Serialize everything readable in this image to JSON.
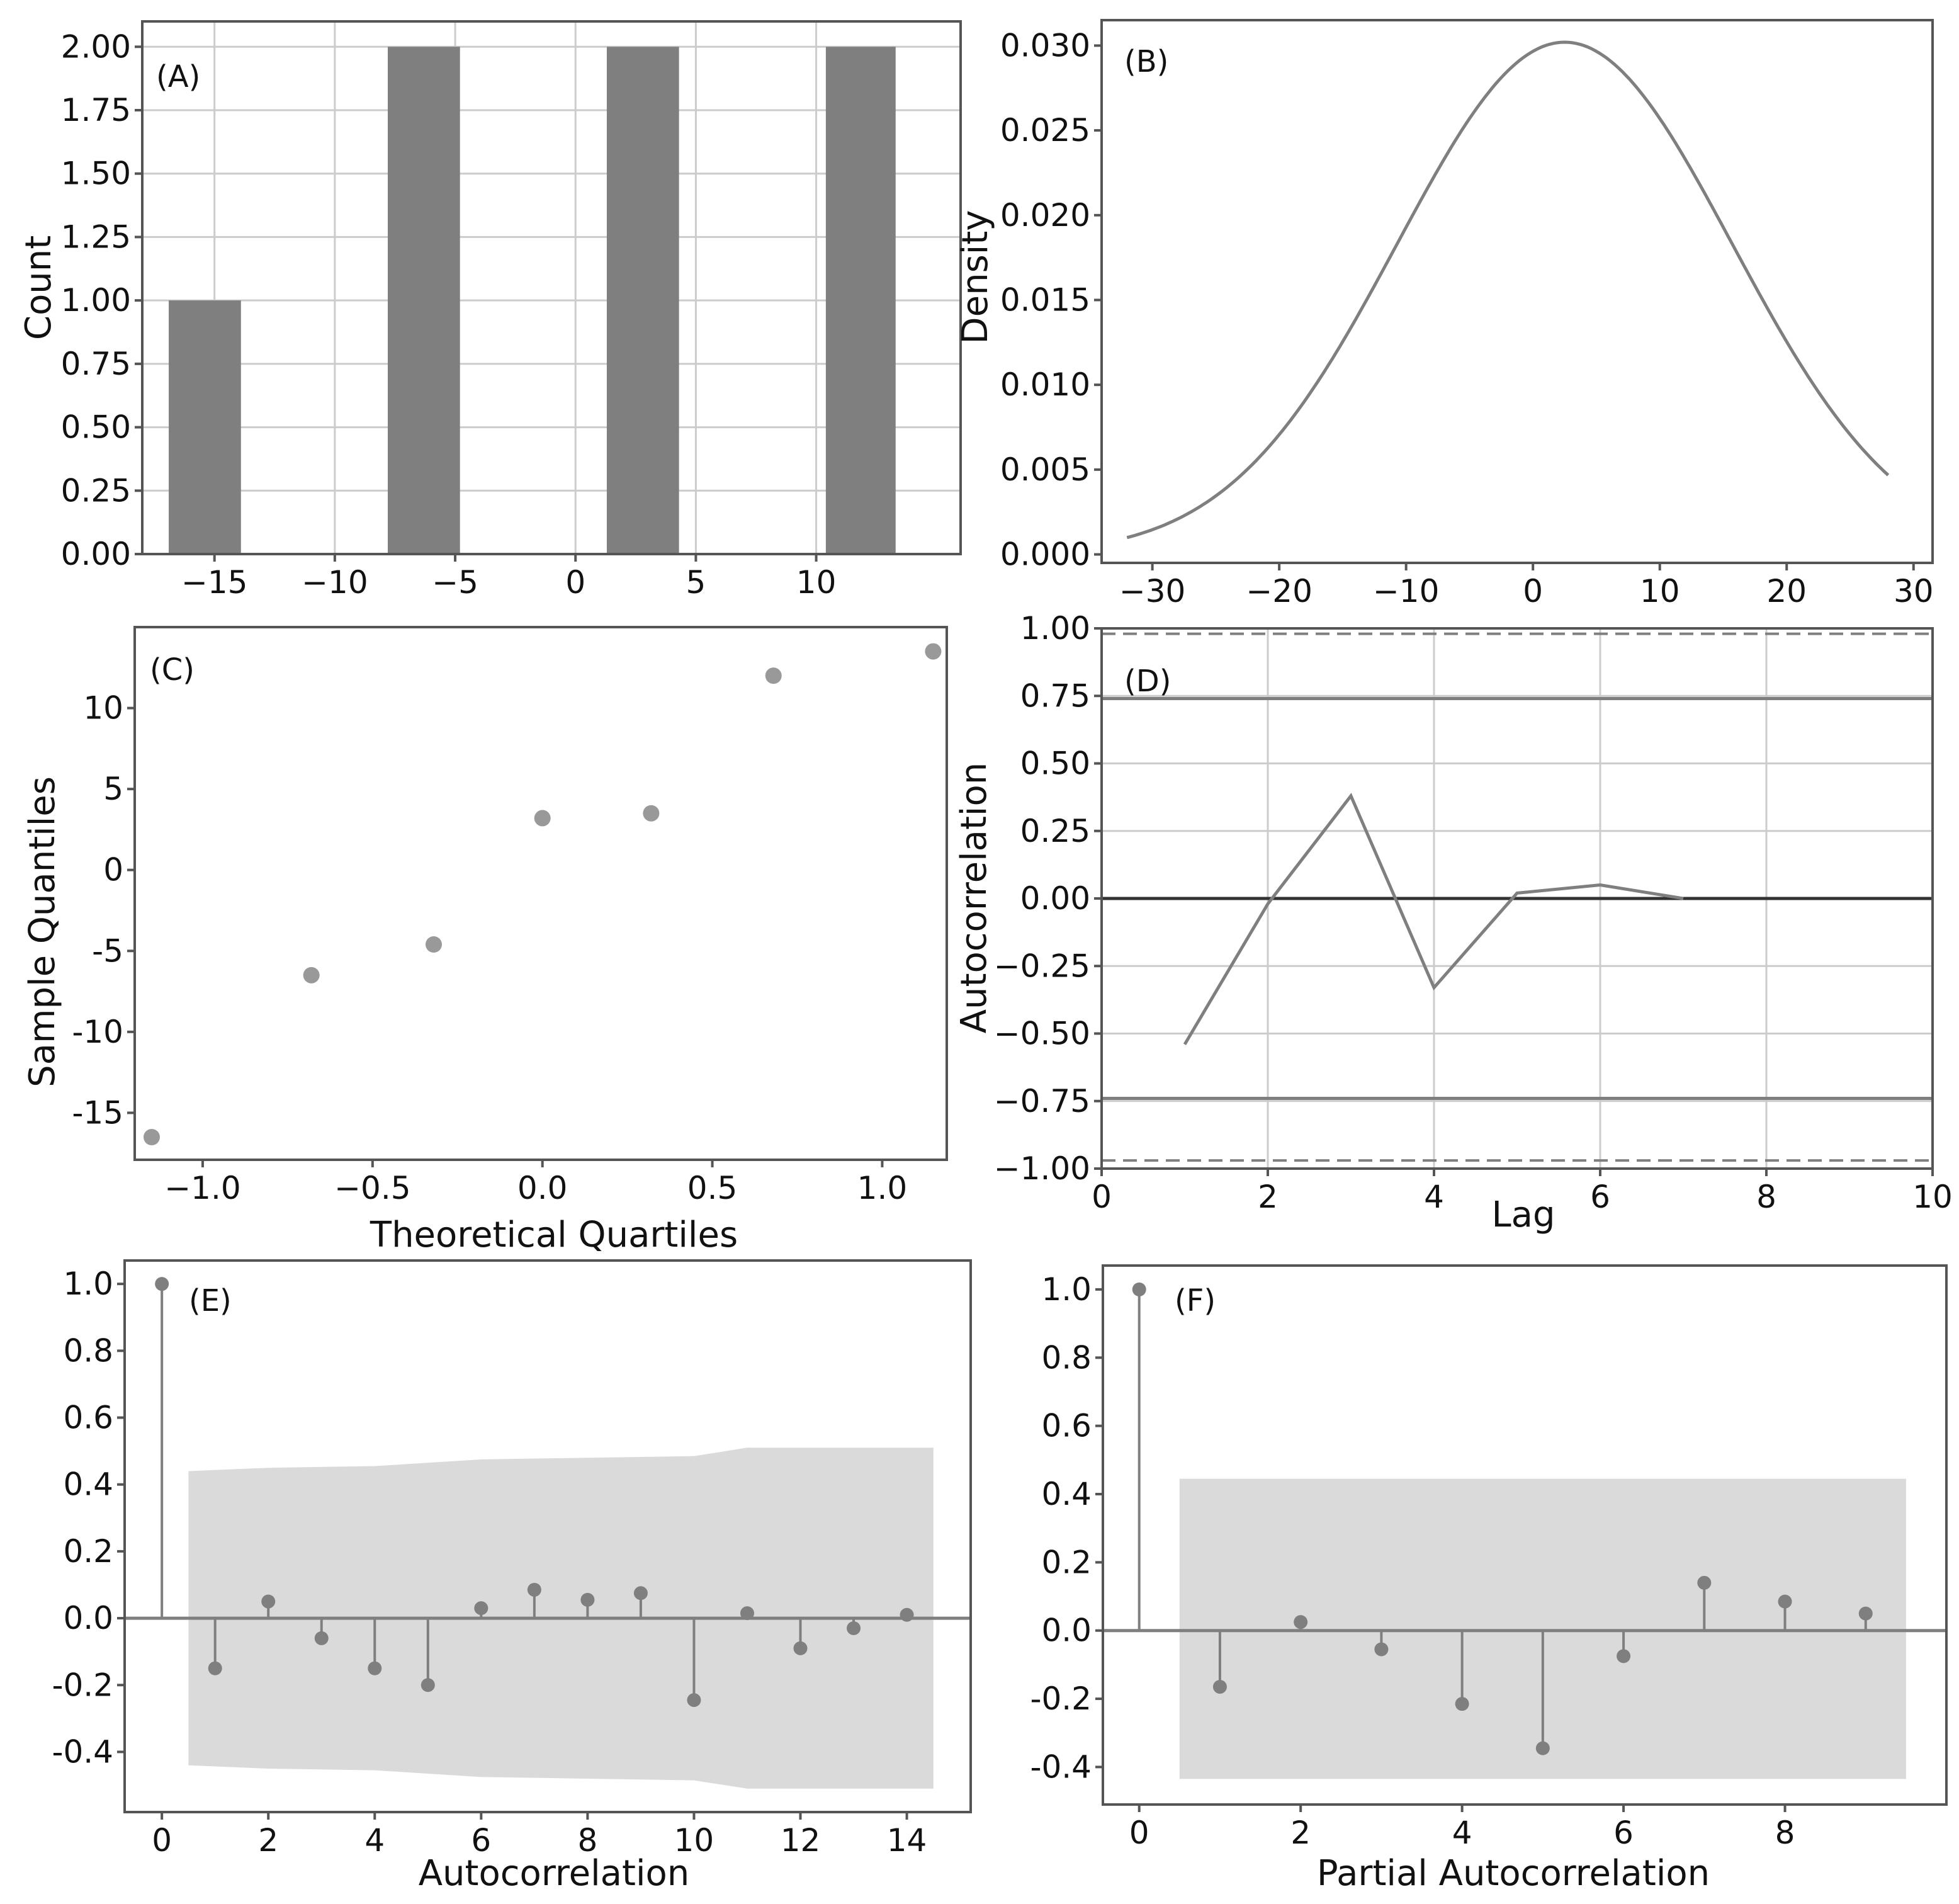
{
  "colors": {
    "mark": "#7f7f7f",
    "band": "#dadada",
    "zero_line": "#555555",
    "grid": "#cccccc"
  },
  "chart_data": [
    {
      "id": "A",
      "panel_label": "(A)",
      "type": "bar",
      "ylabel": "Count",
      "xlabel": "",
      "grid": true,
      "xlim": [
        -18,
        16
      ],
      "ylim": [
        0,
        2.1
      ],
      "bars": [
        {
          "x0": -16.9,
          "x1": -13.9,
          "value": 1
        },
        {
          "x0": -7.8,
          "x1": -4.8,
          "value": 2
        },
        {
          "x0": 1.3,
          "x1": 4.3,
          "value": 2
        },
        {
          "x0": 10.4,
          "x1": 13.3,
          "value": 2
        }
      ],
      "xticks": [
        -15,
        -10,
        -5,
        0,
        5,
        10
      ],
      "xtick_labels": [
        "−15",
        "−10",
        "−5",
        "0",
        "5",
        "10"
      ],
      "yticks": [
        0,
        0.25,
        0.5,
        0.75,
        1.0,
        1.25,
        1.5,
        1.75,
        2.0
      ],
      "ytick_labels": [
        "0.00",
        "0.25",
        "0.50",
        "0.75",
        "1.00",
        "1.25",
        "1.50",
        "1.75",
        "2.00"
      ]
    },
    {
      "id": "B",
      "panel_label": "(B)",
      "type": "line",
      "ylabel": "Density",
      "xlabel": "",
      "grid": false,
      "xlim": [
        -34,
        31.5
      ],
      "ylim": [
        -0.0005,
        0.0315
      ],
      "curve": {
        "kind": "gaussian",
        "mean": 2.5,
        "sd": 13.2,
        "peak": 0.0302,
        "x_from": -32,
        "x_to": 28
      },
      "xticks": [
        -30,
        -20,
        -10,
        0,
        10,
        20,
        30
      ],
      "xtick_labels": [
        "−30",
        "−20",
        "−10",
        "0",
        "10",
        "20",
        "30"
      ],
      "yticks": [
        0,
        0.005,
        0.01,
        0.015,
        0.02,
        0.025,
        0.03
      ],
      "ytick_labels": [
        "0.000",
        "0.005",
        "0.010",
        "0.015",
        "0.020",
        "0.025",
        "0.030"
      ]
    },
    {
      "id": "C",
      "panel_label": "(C)",
      "type": "scatter",
      "ylabel": "Sample Quantiles",
      "xlabel": "Theoretical Quartiles",
      "grid": false,
      "xlim": [
        -1.2,
        1.19
      ],
      "ylim": [
        -17.9,
        15.0
      ],
      "points": [
        {
          "x": -1.15,
          "y": -16.5
        },
        {
          "x": -0.68,
          "y": -6.5
        },
        {
          "x": -0.32,
          "y": -4.6
        },
        {
          "x": 0.0,
          "y": 3.2
        },
        {
          "x": 0.32,
          "y": 3.5
        },
        {
          "x": 0.68,
          "y": 12.0
        },
        {
          "x": 1.15,
          "y": 13.5
        }
      ],
      "xticks": [
        -1.0,
        -0.5,
        0.0,
        0.5,
        1.0
      ],
      "xtick_labels": [
        "−1.0",
        "−0.5",
        "0.0",
        "0.5",
        "1.0"
      ],
      "yticks": [
        -15,
        -10,
        -5,
        0,
        5,
        10
      ],
      "ytick_labels": [
        "-15",
        "-10",
        "-5",
        "0",
        "5",
        "10"
      ]
    },
    {
      "id": "D",
      "panel_label": "(D)",
      "type": "line",
      "ylabel": "Autocorrelation",
      "xlabel": "Lag",
      "grid": true,
      "xlim": [
        0,
        10
      ],
      "ylim": [
        -1.0,
        1.0
      ],
      "series": [
        {
          "name": "autocorrelation",
          "x": [
            1,
            2,
            3,
            4,
            5,
            6,
            7
          ],
          "y": [
            -0.54,
            -0.02,
            0.38,
            -0.33,
            0.02,
            0.05,
            0.0
          ]
        }
      ],
      "confidence_lines": {
        "solid": [
          0.74,
          -0.74
        ],
        "dashed": [
          0.98,
          -0.97
        ]
      },
      "xticks": [
        0,
        2,
        4,
        6,
        8,
        10
      ],
      "xtick_labels": [
        "0",
        "2",
        "4",
        "6",
        "8",
        "10"
      ],
      "yticks": [
        -1.0,
        -0.75,
        -0.5,
        -0.25,
        0.0,
        0.25,
        0.5,
        0.75,
        1.0
      ],
      "ytick_labels": [
        "−1.00",
        "−0.75",
        "−0.50",
        "−0.25",
        "0.00",
        "0.25",
        "0.50",
        "0.75",
        "1.00"
      ]
    },
    {
      "id": "E",
      "panel_label": "(E)",
      "type": "stem",
      "ylabel": "",
      "xlabel": "Autocorrelation",
      "grid": false,
      "xlim": [
        -0.7,
        15.2
      ],
      "ylim": [
        -0.58,
        1.07
      ],
      "lags": [
        0,
        1,
        2,
        3,
        4,
        5,
        6,
        7,
        8,
        9,
        10,
        11,
        12,
        13,
        14
      ],
      "values": [
        1.0,
        -0.15,
        0.05,
        -0.06,
        -0.15,
        -0.2,
        0.03,
        0.085,
        0.055,
        0.075,
        -0.245,
        0.015,
        -0.09,
        -0.03,
        0.01
      ],
      "confidence_band": {
        "x": [
          0.5,
          2,
          4,
          6,
          10,
          11,
          14.5
        ],
        "upper": [
          0.44,
          0.45,
          0.455,
          0.475,
          0.485,
          0.51,
          0.51
        ],
        "lower": [
          -0.44,
          -0.45,
          -0.455,
          -0.475,
          -0.485,
          -0.51,
          -0.51
        ]
      },
      "xticks": [
        0,
        2,
        4,
        6,
        8,
        10,
        12,
        14
      ],
      "xtick_labels": [
        "0",
        "2",
        "4",
        "6",
        "8",
        "10",
        "12",
        "14"
      ],
      "yticks": [
        -0.4,
        -0.2,
        0.0,
        0.2,
        0.4,
        0.6,
        0.8,
        1.0
      ],
      "ytick_labels": [
        "-0.4",
        "-0.2",
        "0.0",
        "0.2",
        "0.4",
        "0.6",
        "0.8",
        "1.0"
      ]
    },
    {
      "id": "F",
      "panel_label": "(F)",
      "type": "stem",
      "ylabel": "",
      "xlabel": "Partial Autocorrelation",
      "grid": false,
      "xlim": [
        -0.45,
        10.0
      ],
      "ylim": [
        -0.51,
        1.07
      ],
      "lags": [
        0,
        1,
        2,
        3,
        4,
        5,
        6,
        7,
        8,
        9
      ],
      "values": [
        1.0,
        -0.165,
        0.025,
        -0.055,
        -0.215,
        -0.345,
        -0.075,
        0.14,
        0.085,
        0.05
      ],
      "confidence_band": {
        "x": [
          0.5,
          9.5
        ],
        "upper": [
          0.445,
          0.445
        ],
        "lower": [
          -0.435,
          -0.435
        ]
      },
      "xticks": [
        0,
        2,
        4,
        6,
        8
      ],
      "xtick_labels": [
        "0",
        "2",
        "4",
        "6",
        "8"
      ],
      "yticks": [
        -0.4,
        -0.2,
        0.0,
        0.2,
        0.4,
        0.6,
        0.8,
        1.0
      ],
      "ytick_labels": [
        "-0.4",
        "-0.2",
        "0.0",
        "0.2",
        "0.4",
        "0.6",
        "0.8",
        "1.0"
      ]
    }
  ]
}
